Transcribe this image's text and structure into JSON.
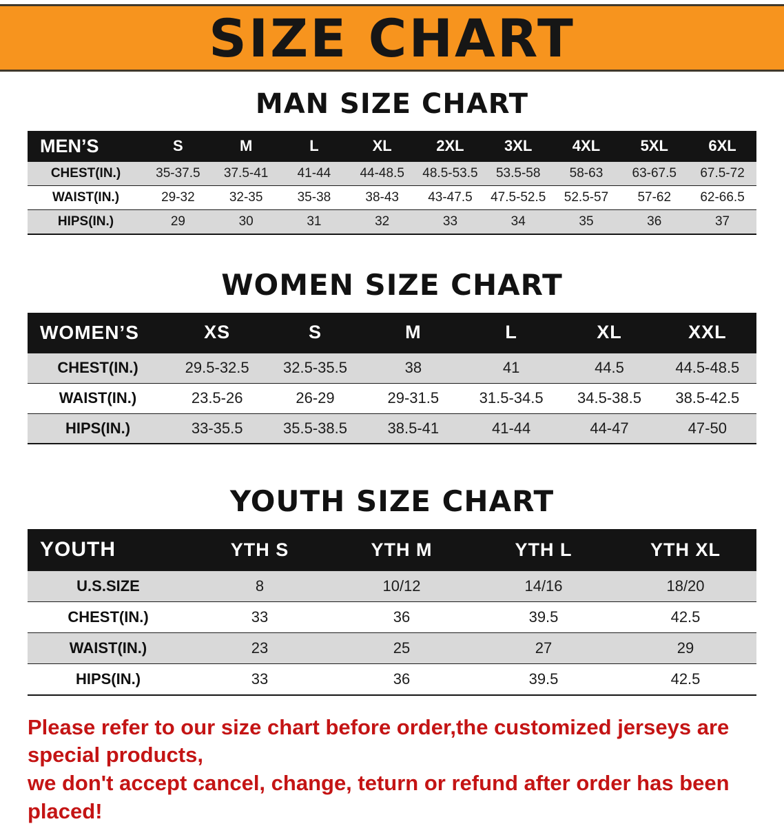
{
  "banner": {
    "title": "SIZE CHART"
  },
  "colors": {
    "banner_bg": "#F7941E",
    "table_header_bg": "#141414",
    "row_stripe": "#D9D9D9",
    "notice_red": "#C41414"
  },
  "sections": {
    "men": {
      "heading": "MAN SIZE CHART",
      "table": {
        "header": [
          "MEN’S",
          "S",
          "M",
          "L",
          "XL",
          "2XL",
          "3XL",
          "4XL",
          "5XL",
          "6XL"
        ],
        "rows": [
          [
            "CHEST(IN.)",
            "35-37.5",
            "37.5-41",
            "41-44",
            "44-48.5",
            "48.5-53.5",
            "53.5-58",
            "58-63",
            "63-67.5",
            "67.5-72"
          ],
          [
            "WAIST(IN.)",
            "29-32",
            "32-35",
            "35-38",
            "38-43",
            "43-47.5",
            "47.5-52.5",
            "52.5-57",
            "57-62",
            "62-66.5"
          ],
          [
            "HIPS(IN.)",
            "29",
            "30",
            "31",
            "32",
            "33",
            "34",
            "35",
            "36",
            "37"
          ]
        ]
      }
    },
    "women": {
      "heading": "WOMEN SIZE CHART",
      "table": {
        "header": [
          "WOMEN’S",
          "XS",
          "S",
          "M",
          "L",
          "XL",
          "XXL"
        ],
        "rows": [
          [
            "CHEST(IN.)",
            "29.5-32.5",
            "32.5-35.5",
            "38",
            "41",
            "44.5",
            "44.5-48.5"
          ],
          [
            "WAIST(IN.)",
            "23.5-26",
            "26-29",
            "29-31.5",
            "31.5-34.5",
            "34.5-38.5",
            "38.5-42.5"
          ],
          [
            "HIPS(IN.)",
            "33-35.5",
            "35.5-38.5",
            "38.5-41",
            "41-44",
            "44-47",
            "47-50"
          ]
        ]
      }
    },
    "youth": {
      "heading": "YOUTH SIZE CHART",
      "table": {
        "header": [
          "YOUTH",
          "YTH S",
          "YTH M",
          "YTH L",
          "YTH XL"
        ],
        "rows": [
          [
            "U.S.SIZE",
            "8",
            "10/12",
            "14/16",
            "18/20"
          ],
          [
            "CHEST(IN.)",
            "33",
            "36",
            "39.5",
            "42.5"
          ],
          [
            "WAIST(IN.)",
            "23",
            "25",
            "27",
            "29"
          ],
          [
            "HIPS(IN.)",
            "33",
            "36",
            "39.5",
            "42.5"
          ]
        ]
      }
    }
  },
  "notice": {
    "lines": [
      "Please refer to our size chart before order,the customized jerseys are special products,",
      "we don't accept cancel, change, teturn or refund after order has been placed!"
    ]
  }
}
